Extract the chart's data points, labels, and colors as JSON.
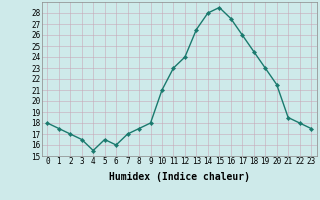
{
  "x": [
    0,
    1,
    2,
    3,
    4,
    5,
    6,
    7,
    8,
    9,
    10,
    11,
    12,
    13,
    14,
    15,
    16,
    17,
    18,
    19,
    20,
    21,
    22,
    23
  ],
  "y": [
    18.0,
    17.5,
    17.0,
    16.5,
    15.5,
    16.5,
    16.0,
    17.0,
    17.5,
    18.0,
    21.0,
    23.0,
    24.0,
    26.5,
    28.0,
    28.5,
    27.5,
    26.0,
    24.5,
    23.0,
    21.5,
    18.5,
    18.0,
    17.5
  ],
  "xlabel": "Humidex (Indice chaleur)",
  "line_color": "#1a7a6e",
  "marker_color": "#1a7a6e",
  "bg_color": "#ceeaea",
  "grid_color": "#b8d8d8",
  "xlim": [
    -0.5,
    23.5
  ],
  "ylim": [
    15,
    29
  ],
  "yticks": [
    15,
    16,
    17,
    18,
    19,
    20,
    21,
    22,
    23,
    24,
    25,
    26,
    27,
    28
  ],
  "xtick_labels": [
    "0",
    "1",
    "2",
    "3",
    "4",
    "5",
    "6",
    "7",
    "8",
    "9",
    "10",
    "11",
    "12",
    "13",
    "14",
    "15",
    "16",
    "17",
    "18",
    "19",
    "20",
    "21",
    "22",
    "23"
  ],
  "tick_fontsize": 5.5,
  "xlabel_fontsize": 7,
  "line_width": 1.0,
  "marker_size": 2.2
}
